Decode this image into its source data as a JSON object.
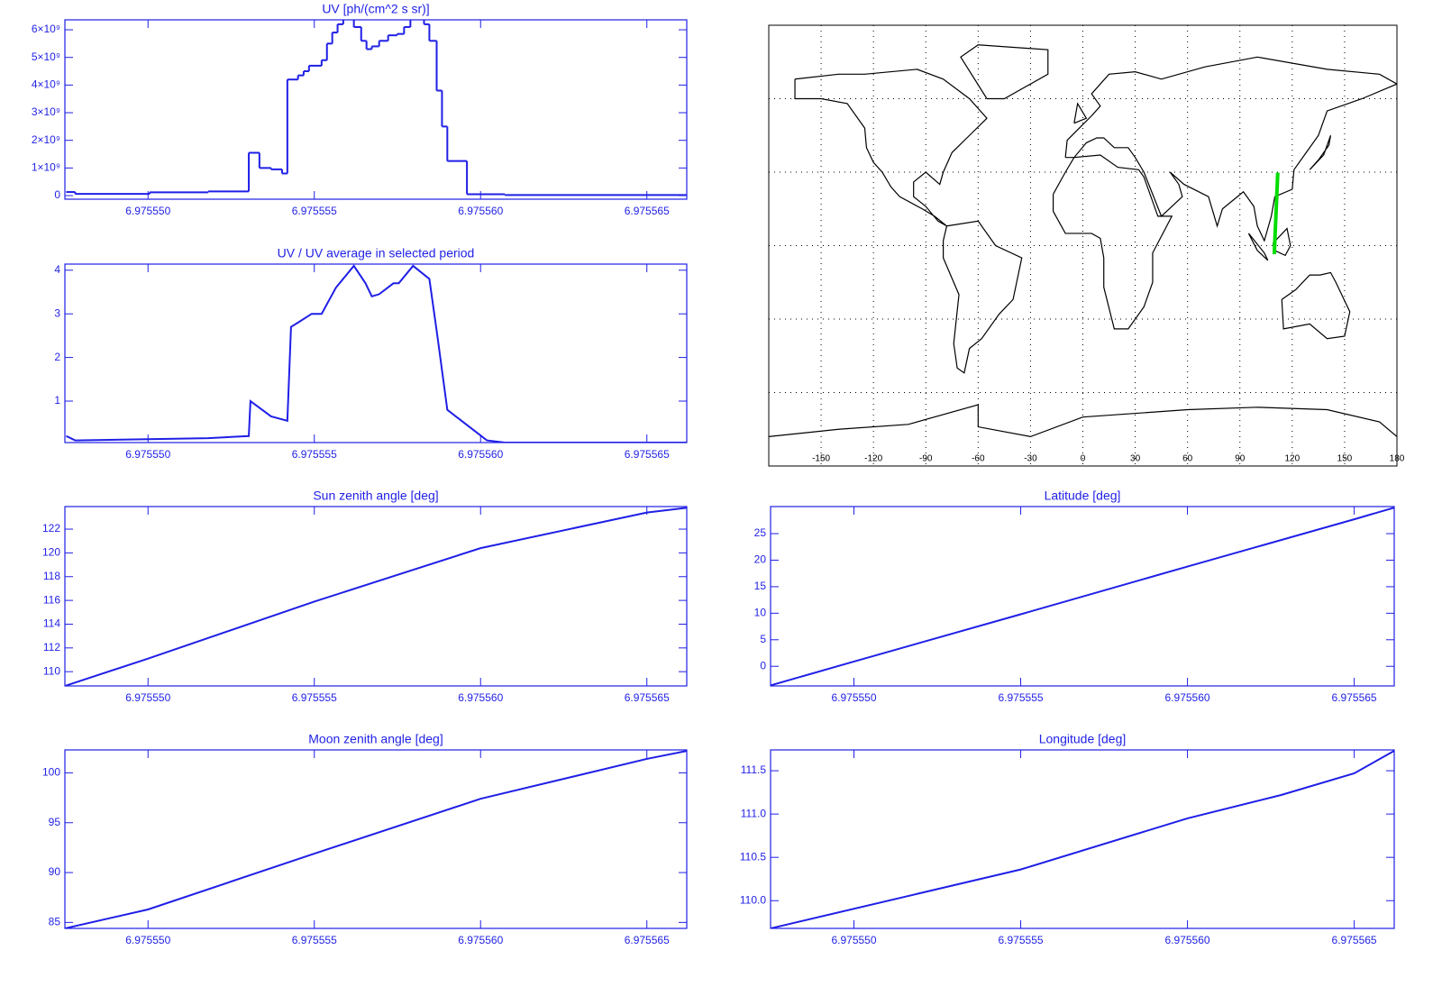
{
  "chart_data": [
    {
      "type": "step",
      "title": "UV [ph/(cm^2 s sr)]",
      "color": "#1f1fe6",
      "x": [
        6.97554754,
        6.97554781,
        6.97555005,
        6.97555181,
        6.97555303,
        6.97555335,
        6.9755537,
        6.97555403,
        6.97555419,
        6.97555451,
        6.97555468,
        6.97555484,
        6.97555522,
        6.97555538,
        6.97555554,
        6.9755557,
        6.97555587,
        6.97555619,
        6.97555641,
        6.97555657,
        6.97555673,
        6.97555695,
        6.97555722,
        6.97555749,
        6.9755577,
        6.97555789,
        6.9755583,
        6.97555846,
        6.97555868,
        6.97555884,
        6.975559,
        6.97555959,
        6.97556073
      ],
      "values": [
        130000000.0,
        60000000.0,
        120000000.0,
        150000000.0,
        1550000000.0,
        1000000000.0,
        950000000.0,
        800000000.0,
        4200000000.0,
        4350000000.0,
        4500000000.0,
        4700000000.0,
        4900000000.0,
        5500000000.0,
        5900000000.0,
        6200000000.0,
        6400000000.0,
        6100000000.0,
        5600000000.0,
        5300000000.0,
        5400000000.0,
        5600000000.0,
        5800000000.0,
        5850000000.0,
        6100000000.0,
        6400000000.0,
        6200000000.0,
        5600000000.0,
        3800000000.0,
        2500000000.0,
        1250000000.0,
        50000000.0,
        20000000.0
      ],
      "xlim": [
        6.9755475,
        6.9755662
      ],
      "xticks": [
        {
          "value": 6.97555,
          "label": "6.975550"
        },
        6.975555,
        {
          "value": 6.97556,
          "label": "6.975560"
        },
        6.975565
      ],
      "ylim": [
        -130000000.0,
        6360000000.0
      ],
      "yticks": [
        0,
        {
          "value": 1000000000.0,
          "label": "1×10⁹"
        },
        {
          "value": 2000000000.0,
          "label": "2×10⁹"
        },
        {
          "value": 3000000000.0,
          "label": "3×10⁹"
        },
        {
          "value": 4000000000.0,
          "label": "4×10⁹"
        },
        {
          "value": 5000000000.0,
          "label": "5×10⁹"
        },
        {
          "value": 6000000000.0,
          "label": "6×10⁹"
        }
      ]
    },
    {
      "type": "line",
      "title": "UV / UV average in selected period",
      "color": "#1f1fe6",
      "x": [
        6.97554754,
        6.97554781,
        6.97555181,
        6.97555303,
        6.97555308,
        6.9755537,
        6.97555419,
        6.9755543,
        6.97555451,
        6.97555492,
        6.97555522,
        6.97555565,
        6.97555619,
        6.97555654,
        6.97555673,
        6.97555695,
        6.97555738,
        6.97555754,
        6.97555797,
        6.97555846,
        6.9755587,
        6.975559,
        6.97556019,
        6.97556073,
        6.97556619
      ],
      "values": [
        0.2,
        0.1,
        0.15,
        0.2,
        1.0,
        0.65,
        0.55,
        2.7,
        2.8,
        3.0,
        3.0,
        3.6,
        4.1,
        3.7,
        3.4,
        3.45,
        3.7,
        3.7,
        4.1,
        3.8,
        2.5,
        0.8,
        0.1,
        0.05,
        0.05
      ],
      "xlim": [
        6.9755475,
        6.9755662
      ],
      "xticks": [
        {
          "value": 6.97555,
          "label": "6.975550"
        },
        6.975555,
        {
          "value": 6.97556,
          "label": "6.975560"
        },
        6.975565
      ],
      "ylim": [
        0.05,
        4.14
      ],
      "yticks": [
        1,
        2,
        3,
        4
      ]
    },
    {
      "type": "line",
      "title": "Sun zenith angle [deg]",
      "color": "#1f1fe6",
      "x": [
        6.9755475,
        6.97555,
        6.975555,
        6.97556,
        6.975565,
        6.9755662
      ],
      "values": [
        108.8,
        111.1,
        115.9,
        120.4,
        123.4,
        123.8
      ],
      "xlim": [
        6.9755475,
        6.9755662
      ],
      "xticks": [
        {
          "value": 6.97555,
          "label": "6.975550"
        },
        6.975555,
        {
          "value": 6.97556,
          "label": "6.975560"
        },
        6.975565
      ],
      "ylim": [
        108.8,
        123.9
      ],
      "yticks": [
        110,
        112,
        114,
        116,
        118,
        120,
        122
      ]
    },
    {
      "type": "line",
      "title": "Moon zenith angle [deg]",
      "color": "#1f1fe6",
      "x": [
        6.9755475,
        6.97555,
        6.975555,
        6.97556,
        6.975565,
        6.9755662
      ],
      "values": [
        84.4,
        86.3,
        91.9,
        97.4,
        101.4,
        102.2
      ],
      "xlim": [
        6.9755475,
        6.9755662
      ],
      "xticks": [
        {
          "value": 6.97555,
          "label": "6.975550"
        },
        6.975555,
        {
          "value": 6.97556,
          "label": "6.975560"
        },
        6.975565
      ],
      "ylim": [
        84.4,
        102.3
      ],
      "yticks": [
        85,
        90,
        95,
        100
      ]
    },
    {
      "type": "map",
      "xlim": [
        -180,
        180
      ],
      "ylim": [
        -90,
        90
      ],
      "xticks": [
        -150,
        -120,
        -90,
        -60,
        -30,
        0,
        30,
        60,
        90,
        120,
        150,
        180
      ],
      "ygrid": [
        -60,
        -30,
        0,
        30,
        60
      ],
      "track": {
        "color": "#00dd00",
        "lon": [
          109.7,
          111.7
        ],
        "lat": [
          -3.5,
          29.8
        ]
      }
    },
    {
      "type": "line",
      "title": "Latitude [deg]",
      "color": "#1f1fe6",
      "x": [
        6.9755475,
        6.97555,
        6.975555,
        6.97556,
        6.975565,
        6.9755662
      ],
      "values": [
        -3.6,
        0.9,
        9.8,
        18.8,
        27.7,
        29.9
      ],
      "xlim": [
        6.9755475,
        6.9755662
      ],
      "xticks": [
        {
          "value": 6.97555,
          "label": "6.975550"
        },
        6.975555,
        {
          "value": 6.97556,
          "label": "6.975560"
        },
        6.975565
      ],
      "ylim": [
        -3.7,
        30.1
      ],
      "yticks": [
        0,
        5,
        10,
        15,
        20,
        25
      ]
    },
    {
      "type": "line",
      "title": "Longitude [deg]",
      "color": "#1f1fe6",
      "x": [
        6.9755475,
        6.975555,
        6.97556,
        6.97556281,
        6.975565,
        6.9755662
      ],
      "values": [
        109.68,
        110.36,
        110.95,
        111.22,
        111.47,
        111.73
      ],
      "xlim": [
        6.9755475,
        6.9755662
      ],
      "xticks": [
        {
          "value": 6.97555,
          "label": "6.975550"
        },
        6.975555,
        {
          "value": 6.97556,
          "label": "6.975560"
        },
        6.975565
      ],
      "ylim": [
        109.68,
        111.74
      ],
      "yticks": [
        {
          "value": 110,
          "label": "110.0"
        },
        110.5,
        {
          "value": 111,
          "label": "111.0"
        },
        111.5
      ]
    }
  ]
}
